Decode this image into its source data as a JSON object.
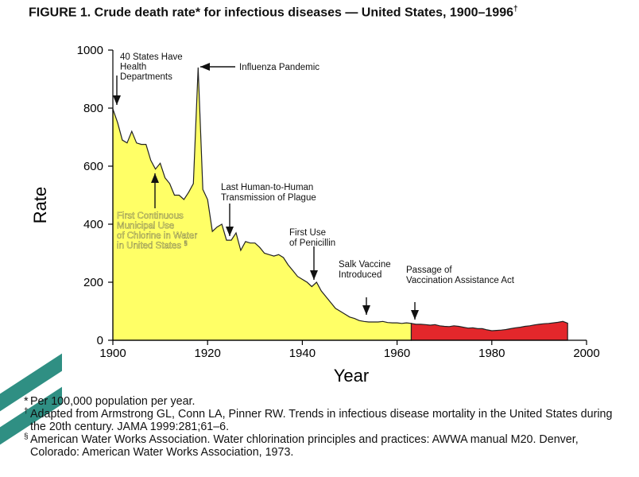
{
  "figure": {
    "title": "FIGURE 1. Crude death rate* for infectious diseases — United States, 1900–1996",
    "title_mark": "†"
  },
  "chart_data": {
    "type": "area",
    "xlabel": "Year",
    "ylabel": "Rate",
    "xlim": [
      1900,
      2000
    ],
    "ylim": [
      0,
      1000
    ],
    "xticks": [
      1900,
      1920,
      1940,
      1960,
      1980,
      2000
    ],
    "yticks": [
      0,
      200,
      400,
      600,
      800,
      1000
    ],
    "grid": false,
    "series": [
      {
        "color": "#ffff66",
        "x": [
          1900,
          1901,
          1902,
          1903,
          1904,
          1905,
          1906,
          1907,
          1908,
          1909,
          1910,
          1911,
          1912,
          1913,
          1914,
          1915,
          1916,
          1917,
          1918,
          1919,
          1920,
          1921,
          1922,
          1923,
          1924,
          1925,
          1926,
          1927,
          1928,
          1929,
          1930,
          1931,
          1932,
          1933,
          1934,
          1935,
          1936,
          1937,
          1938,
          1939,
          1940,
          1941,
          1942,
          1943,
          1944,
          1945,
          1946,
          1947,
          1948,
          1949,
          1950,
          1951,
          1952,
          1953,
          1954,
          1955,
          1956,
          1957,
          1958,
          1959,
          1960,
          1961,
          1962,
          1963
        ],
        "y": [
          797,
          750,
          690,
          680,
          720,
          680,
          675,
          675,
          620,
          590,
          610,
          560,
          540,
          500,
          500,
          485,
          510,
          540,
          940,
          520,
          485,
          375,
          390,
          400,
          345,
          345,
          370,
          310,
          340,
          335,
          335,
          320,
          300,
          295,
          290,
          295,
          285,
          260,
          240,
          220,
          210,
          200,
          185,
          200,
          170,
          150,
          130,
          110,
          100,
          90,
          80,
          75,
          68,
          65,
          63,
          63,
          63,
          65,
          61,
          60,
          60,
          58,
          60,
          58
        ]
      },
      {
        "color": "#e3272b",
        "x": [
          1963,
          1964,
          1965,
          1966,
          1967,
          1968,
          1969,
          1970,
          1971,
          1972,
          1973,
          1974,
          1975,
          1976,
          1977,
          1978,
          1979,
          1980,
          1981,
          1982,
          1983,
          1984,
          1985,
          1986,
          1987,
          1988,
          1989,
          1990,
          1991,
          1992,
          1993,
          1994,
          1995,
          1996
        ],
        "y": [
          58,
          55,
          55,
          54,
          52,
          54,
          50,
          48,
          47,
          50,
          48,
          45,
          42,
          43,
          40,
          40,
          36,
          33,
          34,
          35,
          37,
          40,
          43,
          45,
          48,
          50,
          53,
          55,
          57,
          58,
          60,
          62,
          65,
          59
        ]
      }
    ],
    "annotations": [
      {
        "lines": [
          "40 States Have",
          "Health",
          "Departments"
        ],
        "year": 1900
      },
      {
        "lines": [
          "Influenza Pandemic"
        ],
        "year": 1918
      },
      {
        "lines": [
          "First Continuous",
          "Municipal Use",
          "of Chlorine in Water",
          "in United States"
        ],
        "mark": "§",
        "year": 1908
      },
      {
        "lines": [
          "Last Human-to-Human",
          "Transmission of Plague"
        ],
        "year": 1924
      },
      {
        "lines": [
          "First Use",
          "of Penicillin"
        ],
        "year": 1942
      },
      {
        "lines": [
          "Salk Vaccine",
          "Introduced"
        ],
        "year": 1953
      },
      {
        "lines": [
          "Passage of",
          "Vaccination Assistance Act"
        ],
        "year": 1963
      }
    ]
  },
  "footnotes": [
    {
      "mark": "*",
      "text": "Per 100,000 population per year."
    },
    {
      "mark": "†",
      "text": "Adapted from Armstrong GL, Conn LA, Pinner RW. Trends in infectious disease mortality in the United States during the 20th century. JAMA 1999:281;61–6."
    },
    {
      "mark": "§",
      "text": "American Water Works Association. Water chlorination principles and practices: AWWA manual M20. Denver, Colorado: American Water Works Association, 1973."
    }
  ]
}
